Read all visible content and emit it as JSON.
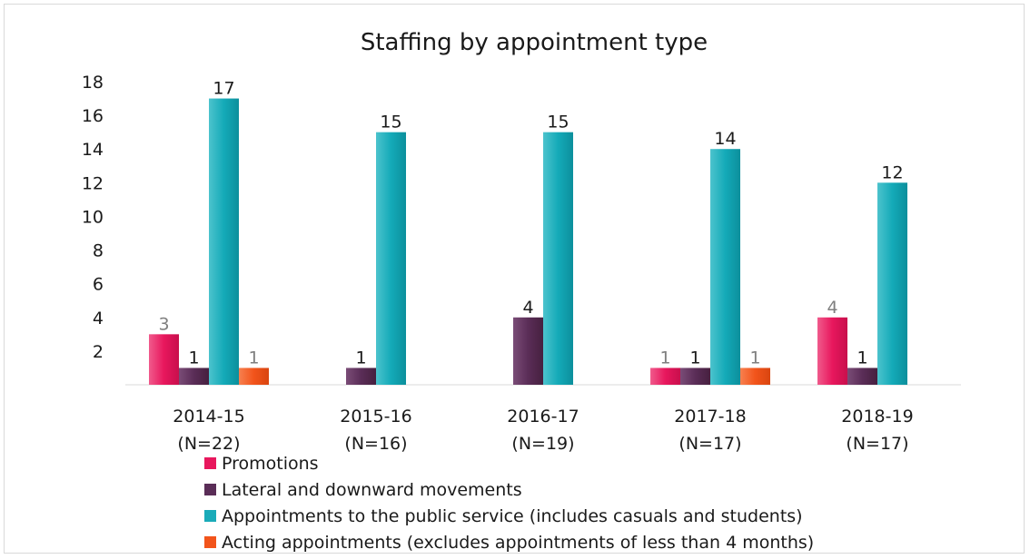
{
  "chart_data": {
    "type": "bar",
    "title": "Staffing by appointment type",
    "xlabel": "",
    "ylabel": "",
    "ylim": [
      0,
      18
    ],
    "yticks": [
      2,
      4,
      6,
      8,
      10,
      12,
      14,
      16,
      18
    ],
    "grid": false,
    "legend_position": "bottom-left",
    "categories": [
      {
        "label": "2014-15",
        "sub": "(N=22)"
      },
      {
        "label": "2015-16",
        "sub": "(N=16)"
      },
      {
        "label": "2016-17",
        "sub": "(N=19)"
      },
      {
        "label": "2017-18",
        "sub": "(N=17)"
      },
      {
        "label": "2018-19",
        "sub": "(N=17)"
      }
    ],
    "series": [
      {
        "name": "Promotions",
        "color": "#e8175d",
        "label_color": "#7f7f7f",
        "values": [
          3,
          null,
          null,
          1,
          4
        ]
      },
      {
        "name": "Lateral and downward movements",
        "color": "#5a2d57",
        "label_color": "#1a1a1a",
        "values": [
          1,
          1,
          4,
          1,
          1
        ]
      },
      {
        "name": "Appointments to the public service  (includes casuals and students)",
        "color": "#1aabb9",
        "label_color": "#1a1a1a",
        "values": [
          17,
          15,
          15,
          14,
          12
        ]
      },
      {
        "name": "Acting appointments (excludes appointments of less than 4 months)",
        "color": "#f2541b",
        "label_color": "#7f7f7f",
        "values": [
          1,
          null,
          null,
          1,
          null
        ]
      }
    ]
  }
}
